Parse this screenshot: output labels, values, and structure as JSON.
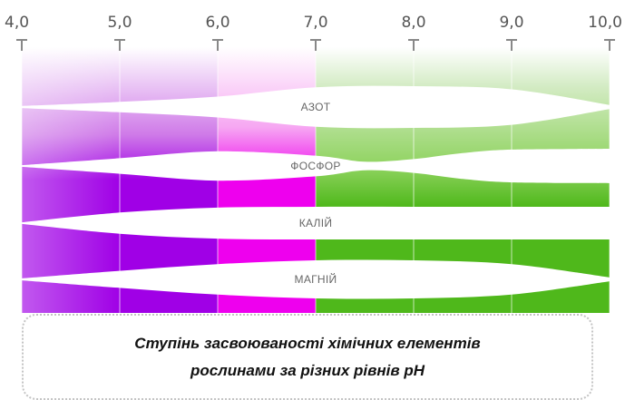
{
  "colors": {
    "purple_dark": "#a000e6",
    "purple_light": "#e7b3f5",
    "magenta": "#ee00ee",
    "magenta_light": "#f6a8f2",
    "green": "#4fb81b",
    "green_light": "#d3ebc3",
    "axis": "#888888"
  },
  "chart_data": {
    "type": "diagram",
    "x_ticks": [
      "4,0",
      "5,0",
      "6,0",
      "7,0",
      "8,0",
      "9,0",
      "10,0"
    ],
    "x_values": [
      4.0,
      5.0,
      6.0,
      7.0,
      8.0,
      9.0,
      10.0
    ],
    "xlim": [
      4.0,
      10.0
    ],
    "bands": [
      {
        "label": "АЗОТ",
        "profile": [
          [
            4.0,
            0.05
          ],
          [
            5.0,
            0.25
          ],
          [
            6.0,
            0.5
          ],
          [
            7.0,
            0.95
          ],
          [
            8.0,
            1.0
          ],
          [
            9.0,
            0.85
          ],
          [
            10.0,
            0.1
          ]
        ]
      },
      {
        "label": "ФОСФОР",
        "profile": [
          [
            4.0,
            0.05
          ],
          [
            5.0,
            0.45
          ],
          [
            6.0,
            0.85
          ],
          [
            7.0,
            0.6
          ],
          [
            7.5,
            0.25
          ],
          [
            8.0,
            0.4
          ],
          [
            8.5,
            0.75
          ],
          [
            9.0,
            0.95
          ],
          [
            10.0,
            1.0
          ]
        ]
      },
      {
        "label": "КАЛІЙ",
        "profile": [
          [
            4.0,
            0.05
          ],
          [
            5.0,
            0.65
          ],
          [
            6.0,
            0.95
          ],
          [
            7.0,
            1.0
          ],
          [
            8.0,
            1.0
          ],
          [
            9.0,
            1.0
          ],
          [
            10.0,
            1.0
          ]
        ]
      },
      {
        "label": "МАГНІЙ",
        "profile": [
          [
            4.0,
            0.05
          ],
          [
            5.0,
            0.45
          ],
          [
            6.0,
            0.8
          ],
          [
            7.0,
            1.0
          ],
          [
            8.0,
            1.0
          ],
          [
            9.0,
            0.8
          ],
          [
            10.0,
            0.1
          ]
        ]
      }
    ]
  },
  "caption": {
    "line1": "Ступінь засвоюваності хімічних елементів",
    "line2": "рослинами за різних рівнів pH"
  }
}
